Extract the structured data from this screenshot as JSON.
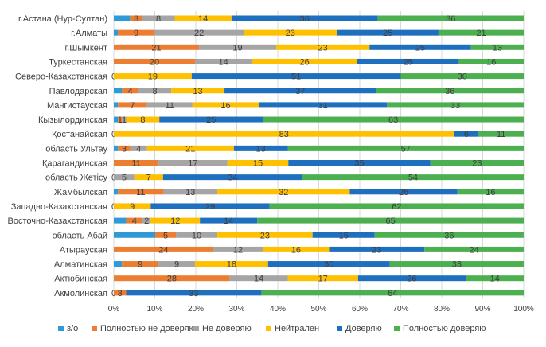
{
  "chart_data": {
    "type": "bar",
    "orientation": "horizontal",
    "stacked": "percent",
    "title": "",
    "xlabel": "",
    "ylabel": "",
    "xlim": [
      0,
      100
    ],
    "x_ticks": [
      "0%",
      "10%",
      "20%",
      "30%",
      "40%",
      "50%",
      "60%",
      "70%",
      "80%",
      "90%",
      "100%"
    ],
    "grid": true,
    "legend_position": "bottom",
    "categories": [
      "г.Астана (Нур-Султан)",
      "г.Алматы",
      "г.Шымкент",
      "Туркестанская",
      "Северо-Казахстанская",
      "Павлодарская",
      "Мангистауская",
      "Кызылординская",
      "Қостанайская",
      "область Ультау",
      "Қарагандинская",
      "область Жетісу",
      "Жамбылская",
      "Западно-Казахстанская",
      "Восточно-Казахстанская",
      "область Абай",
      "Атырауская",
      "Алматинская",
      "Актюбинская",
      "Акмолинская"
    ],
    "series": [
      {
        "name": "з/о",
        "color": "#2e9bd6",
        "values": [
          4,
          1,
          0,
          0,
          0,
          2,
          1,
          1,
          0,
          1,
          0,
          0,
          1,
          0,
          3,
          10,
          0,
          2,
          0,
          0
        ],
        "labels": [
          "",
          "",
          "",
          "",
          "0",
          "",
          "",
          "",
          "0",
          "",
          "",
          "0",
          "",
          "0",
          "",
          "",
          "",
          "",
          "",
          "0"
        ]
      },
      {
        "name": "Полностью не доверяю",
        "color": "#ed7d31",
        "values": [
          3,
          9,
          21,
          20,
          0,
          4,
          7,
          1,
          0,
          3,
          11,
          0,
          11,
          0,
          4,
          5,
          24,
          9,
          28,
          3
        ],
        "labels": [
          "3",
          "9",
          "21",
          "20",
          "",
          "4",
          "7",
          "1",
          "",
          "3",
          "11",
          "",
          "11",
          "",
          "4",
          "5",
          "24",
          "9",
          "28",
          "3"
        ]
      },
      {
        "name": "Не доверяю",
        "color": "#a5a5a5",
        "values": [
          8,
          22,
          19,
          14,
          0,
          8,
          11,
          1,
          0,
          4,
          17,
          5,
          13,
          0,
          2,
          10,
          12,
          9,
          14,
          0
        ],
        "labels": [
          "8",
          "22",
          "19",
          "14",
          "",
          "8",
          "11",
          "1",
          "",
          "4",
          "17",
          "5",
          "13",
          "",
          "2",
          "10",
          "12",
          "9",
          "14",
          ""
        ]
      },
      {
        "name": "Нейтрален",
        "color": "#ffc000",
        "values": [
          14,
          23,
          23,
          26,
          19,
          13,
          16,
          8,
          83,
          21,
          15,
          7,
          32,
          9,
          12,
          23,
          16,
          18,
          17,
          0
        ],
        "labels": [
          "14",
          "23",
          "23",
          "26",
          "19",
          "13",
          "16",
          "8",
          "83",
          "21",
          "15",
          "7",
          "32",
          "9",
          "12",
          "23",
          "16",
          "18",
          "17",
          ""
        ]
      },
      {
        "name": "Доверяю",
        "color": "#1f6fbf",
        "values": [
          36,
          25,
          25,
          25,
          51,
          37,
          31,
          25,
          6,
          13,
          35,
          34,
          26,
          29,
          14,
          15,
          23,
          30,
          26,
          33
        ],
        "labels": [
          "36",
          "25",
          "25",
          "25",
          "51",
          "37",
          "31",
          "25",
          "6",
          "13",
          "35",
          "34",
          "26",
          "29",
          "14",
          "15",
          "23",
          "30",
          "26",
          "33"
        ]
      },
      {
        "name": "Полностью доверяю",
        "color": "#4caf50",
        "values": [
          36,
          21,
          13,
          16,
          30,
          36,
          33,
          63,
          11,
          57,
          23,
          54,
          16,
          62,
          65,
          36,
          24,
          33,
          14,
          64
        ],
        "labels": [
          "36",
          "21",
          "13",
          "16",
          "30",
          "36",
          "33",
          "63",
          "11",
          "57",
          "23",
          "54",
          "16",
          "62",
          "65",
          "36",
          "24",
          "33",
          "14",
          "64"
        ]
      }
    ]
  }
}
